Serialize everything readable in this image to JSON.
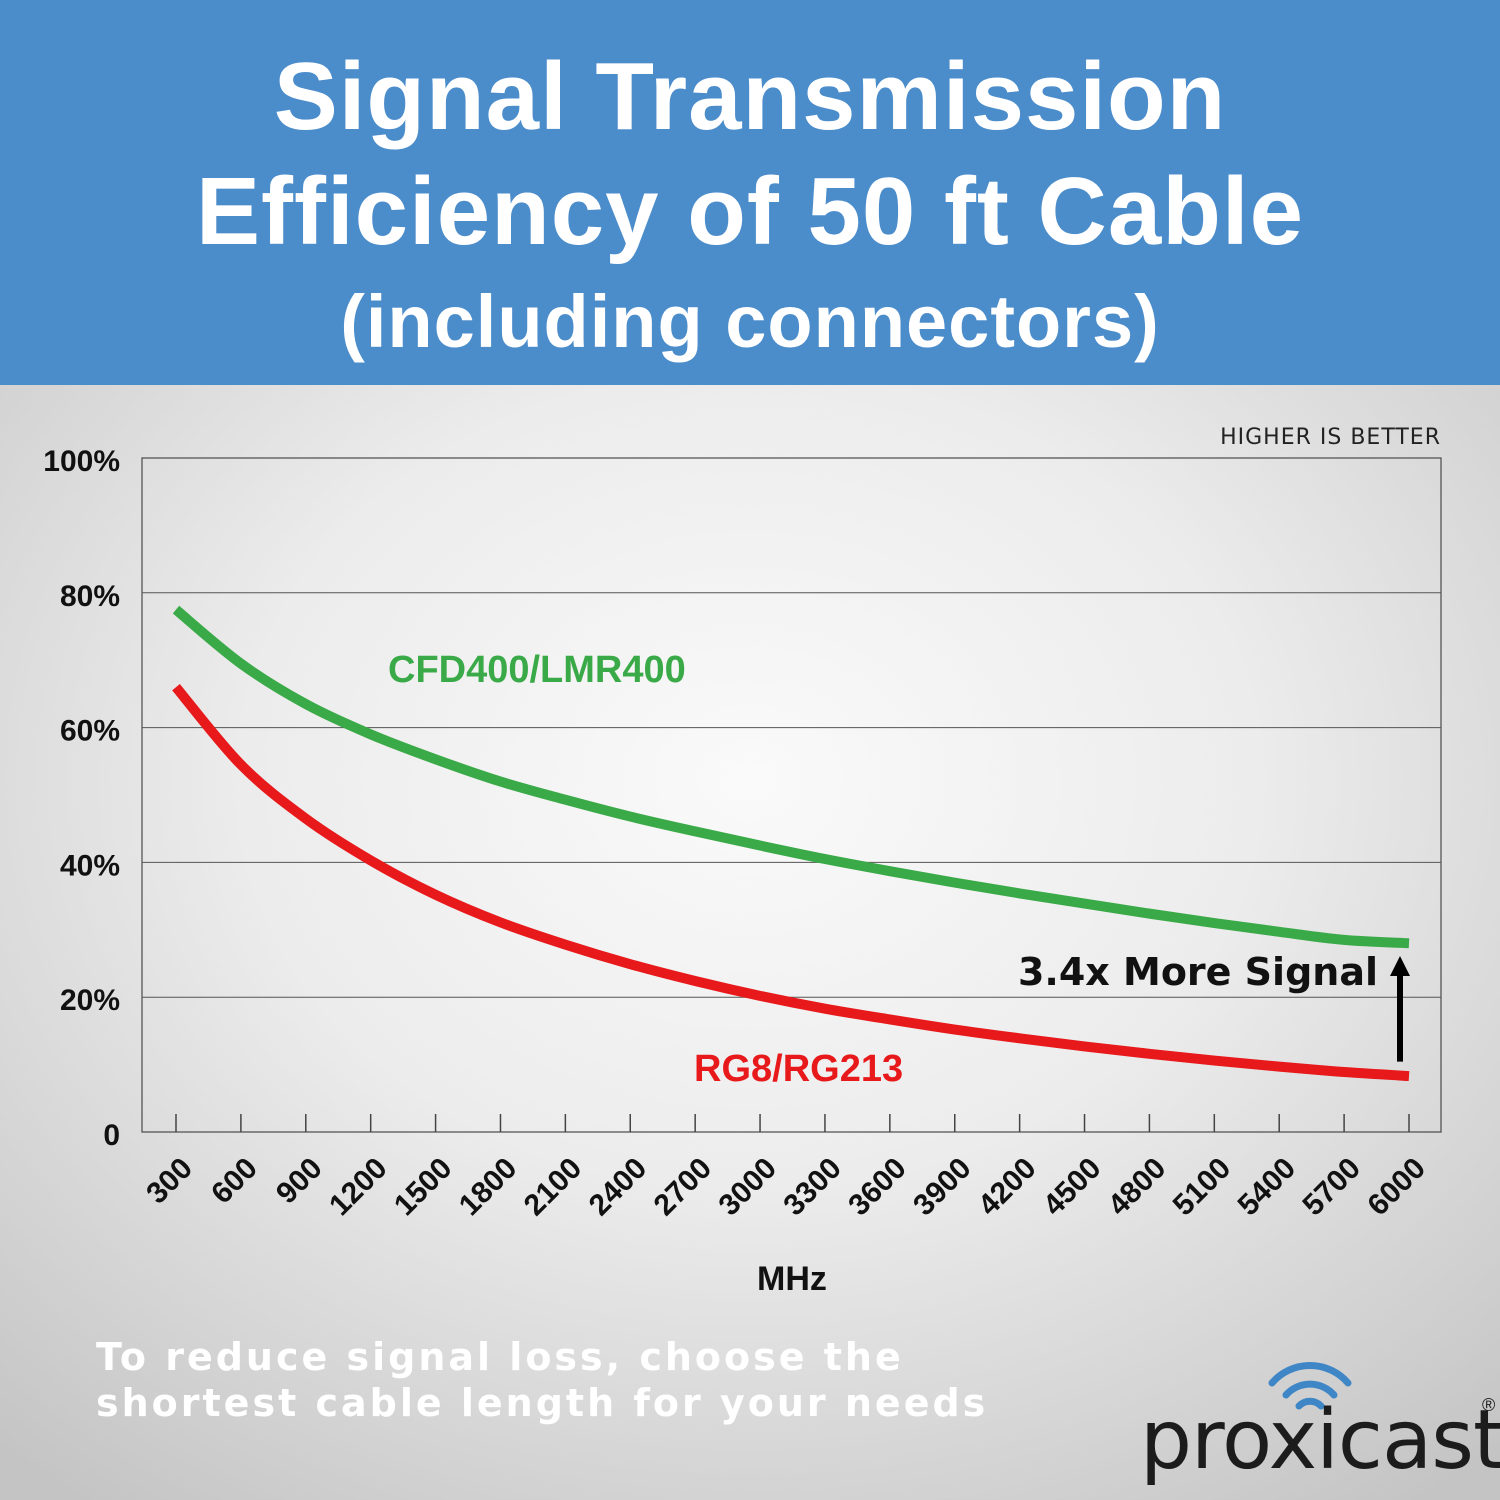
{
  "header": {
    "title_line1": "Signal Transmission",
    "title_line2": "Efficiency of 50 ft Cable",
    "subtitle": "(including connectors)"
  },
  "chart_data": {
    "type": "line",
    "note": "HIGHER IS BETTER",
    "xlabel": "MHz",
    "ylabel": "",
    "x": [
      300,
      600,
      900,
      1200,
      1500,
      1800,
      2100,
      2400,
      2700,
      3000,
      3300,
      3600,
      3900,
      4200,
      4500,
      4800,
      5100,
      5400,
      5700,
      6000
    ],
    "ylim": [
      0,
      100
    ],
    "yticks": [
      0,
      20,
      40,
      60,
      80,
      100
    ],
    "ytick_labels": [
      "0",
      "20%",
      "40%",
      "60%",
      "80%",
      "100%"
    ],
    "grid": true,
    "series": [
      {
        "name": "CFD400/LMR400",
        "color": "#3aaa48",
        "values": [
          77.5,
          69.5,
          63.5,
          59,
          55.3,
          52,
          49.3,
          46.8,
          44.6,
          42.5,
          40.5,
          38.7,
          37.0,
          35.4,
          33.9,
          32.4,
          31.0,
          29.7,
          28.5,
          28.0
        ]
      },
      {
        "name": "RG8/RG213",
        "color": "#e8191b",
        "values": [
          66,
          54.5,
          46.5,
          40.3,
          35.2,
          31.1,
          27.8,
          24.9,
          22.4,
          20.2,
          18.3,
          16.7,
          15.2,
          13.9,
          12.7,
          11.6,
          10.6,
          9.7,
          8.9,
          8.3
        ]
      }
    ],
    "annotation": {
      "text": "3.4x More Signal",
      "x": 6000,
      "from": 10,
      "to": 27
    }
  },
  "footer": {
    "line1": "To reduce signal loss, choose the",
    "line2": "shortest cable length for your needs"
  },
  "logo": {
    "text": "proxicast",
    "reg": "®",
    "wave_color": "#3f86c6"
  }
}
